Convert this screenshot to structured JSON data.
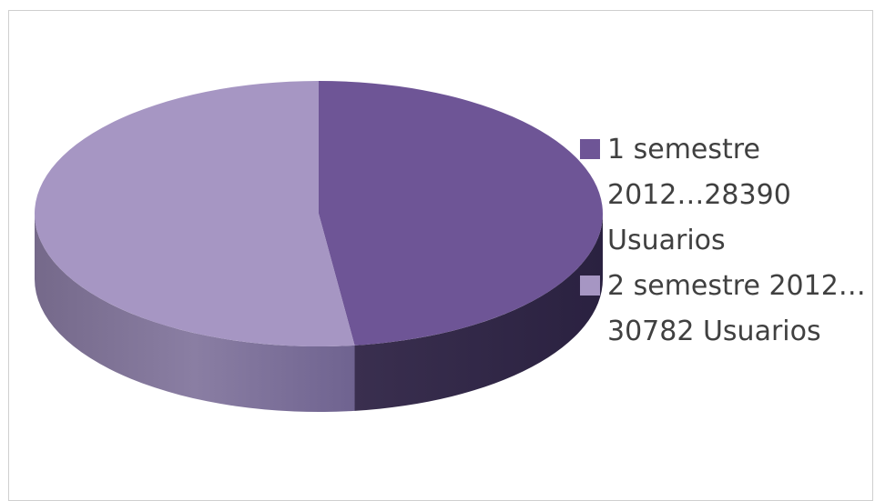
{
  "chart_data": {
    "type": "pie",
    "title": "",
    "series": [
      {
        "name": "1 semestre 2012…28390 Usuarios",
        "value": 28390,
        "color": "#6e5596"
      },
      {
        "name": "2 semestre 2012… 30782 Usuarios",
        "value": 30782,
        "color": "#a696c3"
      }
    ],
    "legend": {
      "position": "right",
      "entries": [
        {
          "lines": [
            "1 semestre",
            "2012…28390",
            "Usuarios"
          ]
        },
        {
          "lines": [
            "2 semestre 2012…",
            "30782 Usuarios"
          ]
        }
      ]
    },
    "style": "3d"
  }
}
